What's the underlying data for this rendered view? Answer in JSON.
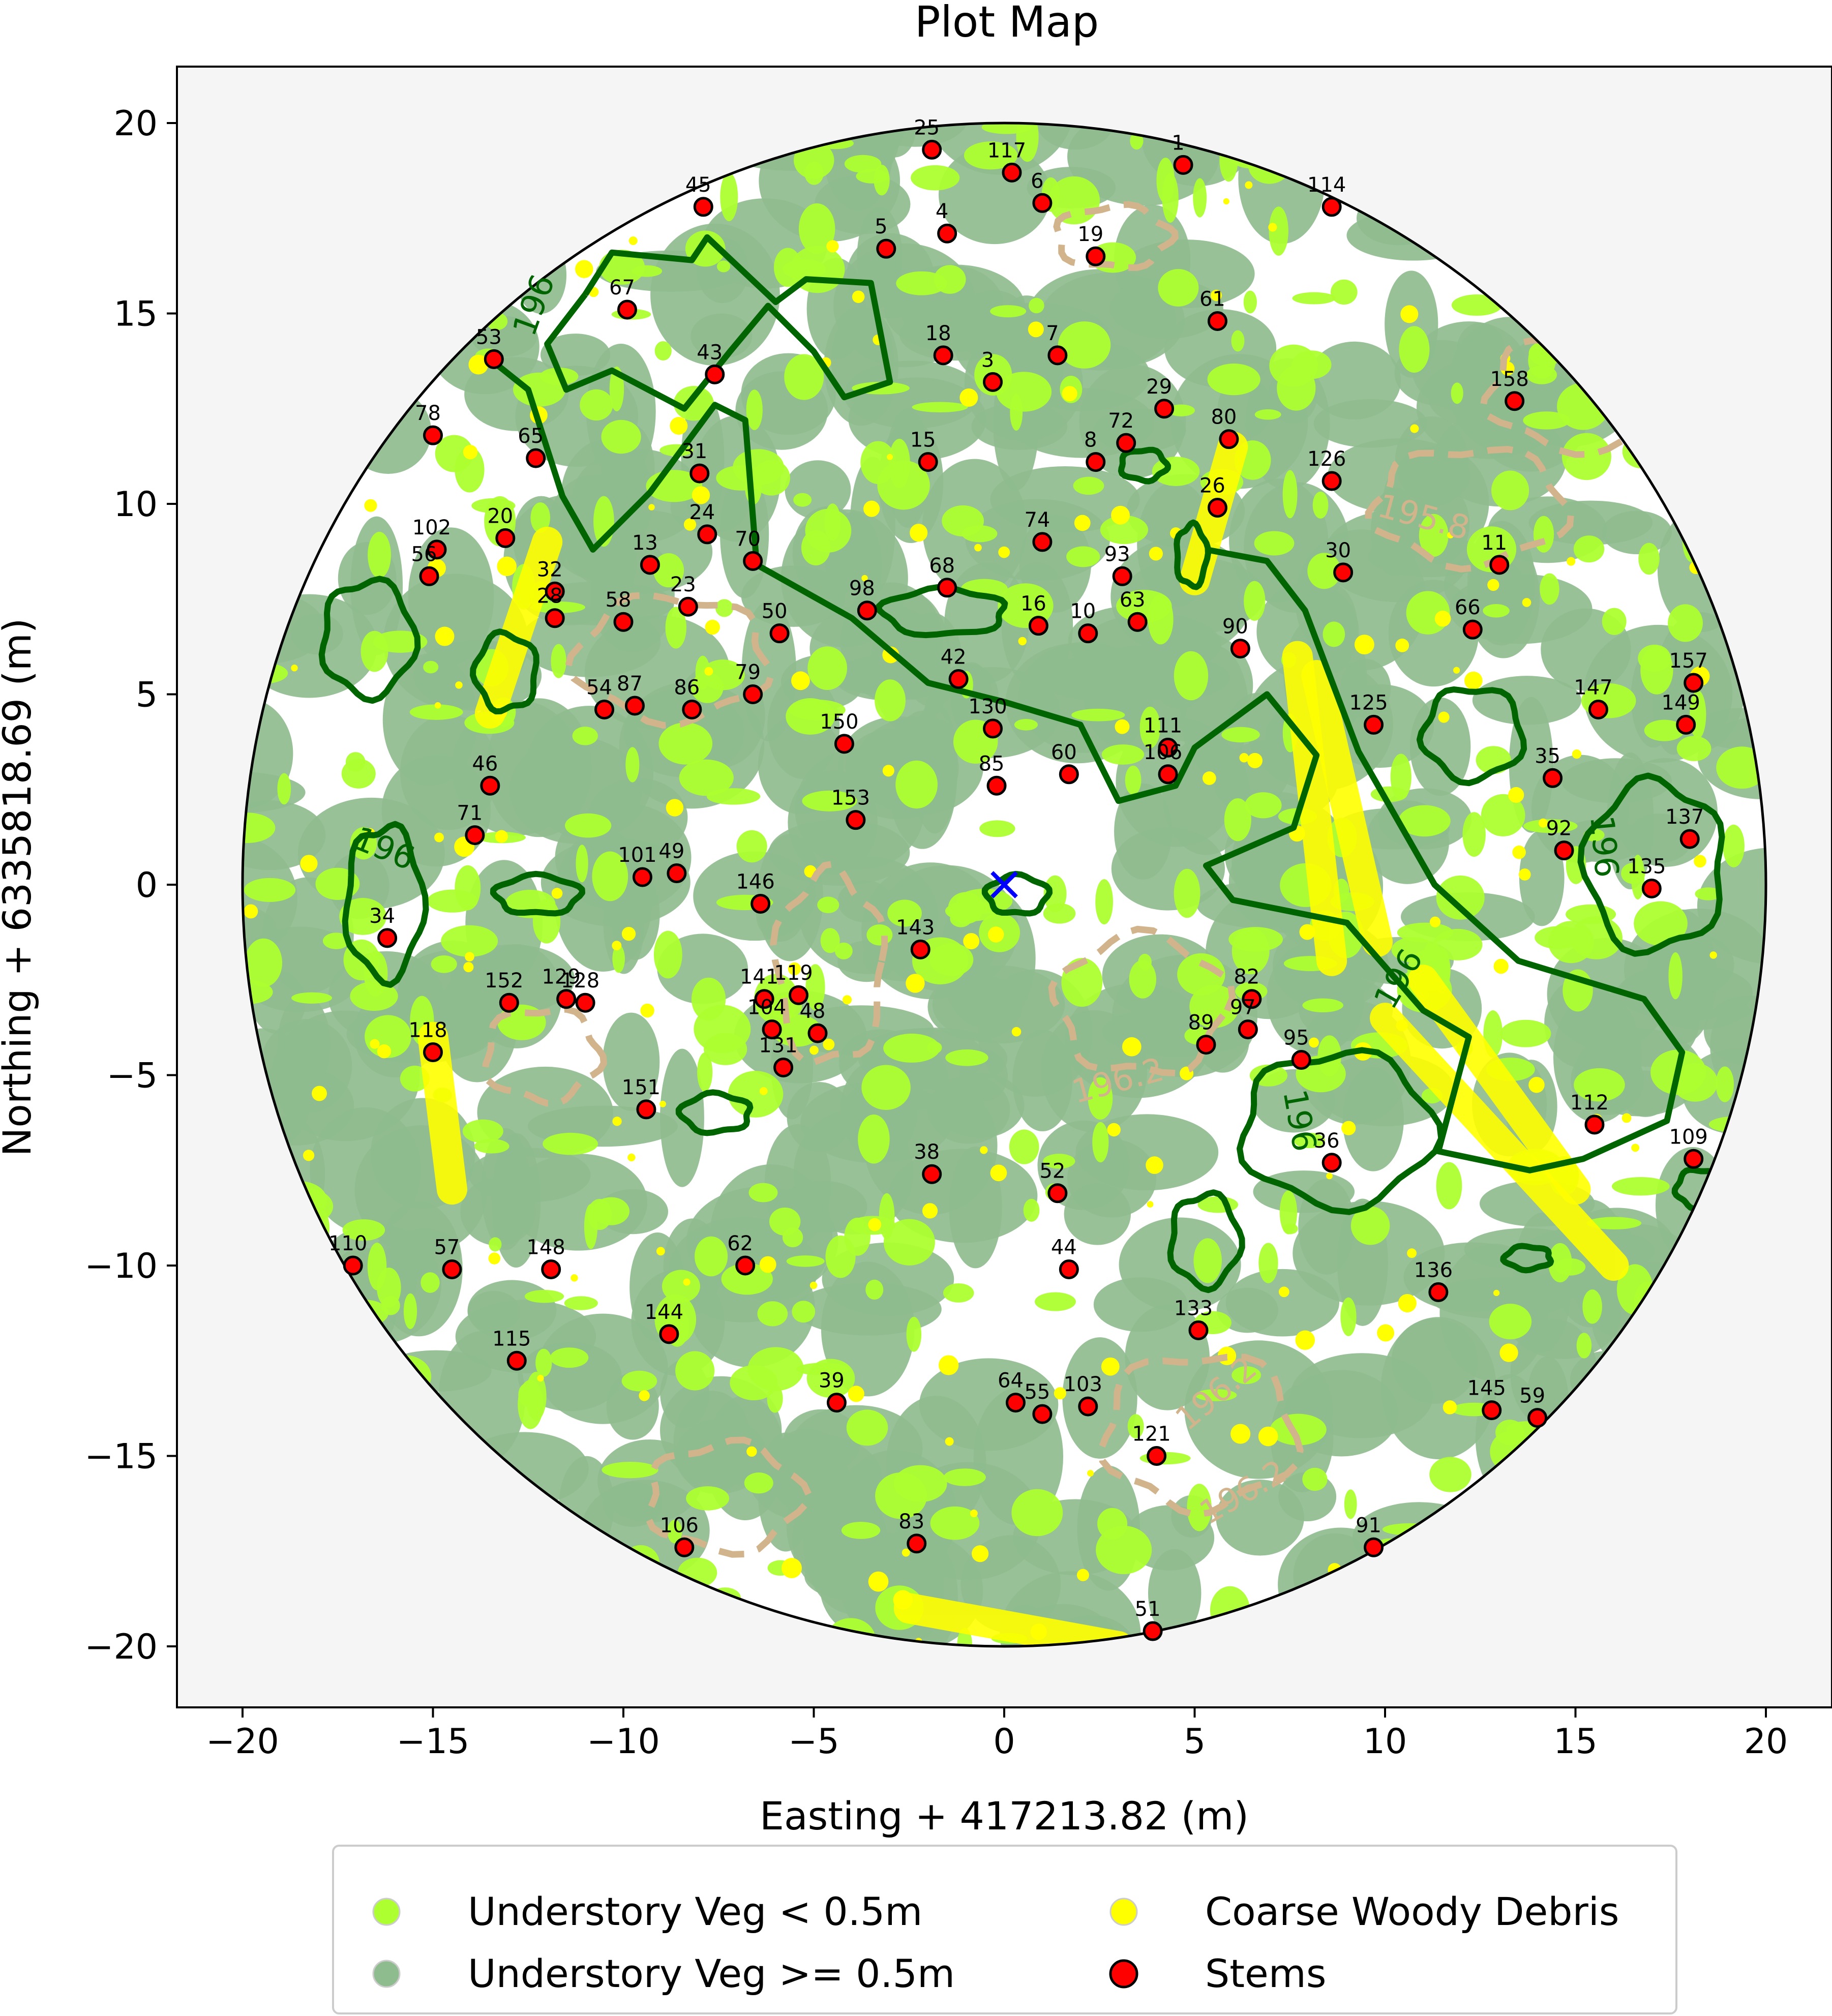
{
  "chart_data": {
    "type": "scatter",
    "title": "Plot Map",
    "xlabel": "Easting + 417213.82 (m)",
    "ylabel": "Northing + 6335818.69 (m)",
    "xlim": [
      -21.7,
      21.7
    ],
    "ylim": [
      -21.7,
      21.7
    ],
    "x_ticks": [
      -20,
      -15,
      -10,
      -5,
      0,
      5,
      10,
      15,
      20
    ],
    "y_ticks": [
      -20,
      -15,
      -10,
      -5,
      0,
      5,
      10,
      15,
      20
    ],
    "tick_labels": [
      "−20",
      "−15",
      "−10",
      "−5",
      "0",
      "5",
      "10",
      "15",
      "20"
    ],
    "plot_radius": 20,
    "plot_center": [
      0,
      0
    ],
    "grid": false,
    "legend_position": "below",
    "legend": [
      {
        "label": "Understory Veg < 0.5m",
        "color": "#adff2f"
      },
      {
        "label": "Coarse Woody Debris",
        "color": "#ffff00"
      },
      {
        "label": "Understory Veg >= 0.5m",
        "color": "#8fbc8f"
      },
      {
        "label": "Stems",
        "color": "#ff0000"
      }
    ],
    "colors": {
      "background": "#f5f5f5",
      "veg_low": "#adff2f",
      "veg_high": "#8fbc8f",
      "cwd": "#ffff00",
      "stem": "#ff0000",
      "contour_dark": "#006400",
      "contour_light": "#d2b48c",
      "center_marker": "#0000ff"
    },
    "contour_labels": [
      {
        "text": "196",
        "x": -16.3,
        "y": 0.9,
        "rot": 22,
        "color": "#006400"
      },
      {
        "text": "196",
        "x": 15.7,
        "y": 1.0,
        "rot": 85,
        "color": "#006400"
      },
      {
        "text": "196",
        "x": 10.4,
        "y": -2.5,
        "rot": -60,
        "color": "#006400"
      },
      {
        "text": "196",
        "x": 7.7,
        "y": -6.2,
        "rot": 80,
        "color": "#006400"
      },
      {
        "text": "196",
        "x": -12.3,
        "y": 15.2,
        "rot": -70,
        "color": "#006400"
      },
      {
        "text": "196.2",
        "x": 3.0,
        "y": -5.2,
        "rot": -15,
        "color": "#d2b48c"
      },
      {
        "text": "196.2",
        "x": 5.6,
        "y": -13.4,
        "rot": -40,
        "color": "#d2b48c"
      },
      {
        "text": "196.2",
        "x": 6.3,
        "y": -16.0,
        "rot": -30,
        "color": "#d2b48c"
      },
      {
        "text": "195.8",
        "x": 11.0,
        "y": 9.6,
        "rot": 15,
        "color": "#d2b48c"
      }
    ],
    "stems": [
      {
        "id": "1",
        "x": 4.7,
        "y": 18.9
      },
      {
        "id": "25",
        "x": -1.9,
        "y": 19.3
      },
      {
        "id": "117",
        "x": 0.2,
        "y": 18.7
      },
      {
        "id": "6",
        "x": 1.0,
        "y": 17.9
      },
      {
        "id": "114",
        "x": 8.6,
        "y": 17.8
      },
      {
        "id": "45",
        "x": -7.9,
        "y": 17.8
      },
      {
        "id": "4",
        "x": -1.5,
        "y": 17.1
      },
      {
        "id": "5",
        "x": -3.1,
        "y": 16.7
      },
      {
        "id": "19",
        "x": 2.4,
        "y": 16.5
      },
      {
        "id": "67",
        "x": -9.9,
        "y": 15.1
      },
      {
        "id": "61",
        "x": 5.6,
        "y": 14.8
      },
      {
        "id": "53",
        "x": -13.4,
        "y": 13.8
      },
      {
        "id": "18",
        "x": -1.6,
        "y": 13.9
      },
      {
        "id": "7",
        "x": 1.4,
        "y": 13.9
      },
      {
        "id": "43",
        "x": -7.6,
        "y": 13.4
      },
      {
        "id": "3",
        "x": -0.3,
        "y": 13.2
      },
      {
        "id": "158",
        "x": 13.4,
        "y": 12.7
      },
      {
        "id": "29",
        "x": 4.2,
        "y": 12.5
      },
      {
        "id": "78",
        "x": -15.0,
        "y": 11.8
      },
      {
        "id": "72",
        "x": 3.2,
        "y": 11.6
      },
      {
        "id": "80",
        "x": 5.9,
        "y": 11.7
      },
      {
        "id": "65",
        "x": -12.3,
        "y": 11.2
      },
      {
        "id": "8",
        "x": 2.4,
        "y": 11.1
      },
      {
        "id": "15",
        "x": -2.0,
        "y": 11.1
      },
      {
        "id": "31",
        "x": -8.0,
        "y": 10.8
      },
      {
        "id": "126",
        "x": 8.6,
        "y": 10.6
      },
      {
        "id": "26",
        "x": 5.6,
        "y": 9.9
      },
      {
        "id": "20",
        "x": -13.1,
        "y": 9.1
      },
      {
        "id": "24",
        "x": -7.8,
        "y": 9.2
      },
      {
        "id": "102",
        "x": -14.9,
        "y": 8.8
      },
      {
        "id": "74",
        "x": 1.0,
        "y": 9.0
      },
      {
        "id": "56",
        "x": -15.1,
        "y": 8.1
      },
      {
        "id": "13",
        "x": -9.3,
        "y": 8.4
      },
      {
        "id": "70",
        "x": -6.6,
        "y": 8.5
      },
      {
        "id": "11",
        "x": 13.0,
        "y": 8.4
      },
      {
        "id": "30",
        "x": 8.9,
        "y": 8.2
      },
      {
        "id": "93",
        "x": 3.1,
        "y": 8.1
      },
      {
        "id": "68",
        "x": -1.5,
        "y": 7.8
      },
      {
        "id": "32",
        "x": -11.8,
        "y": 7.7
      },
      {
        "id": "23",
        "x": -8.3,
        "y": 7.3
      },
      {
        "id": "98",
        "x": -3.6,
        "y": 7.2
      },
      {
        "id": "28",
        "x": -11.8,
        "y": 7.0
      },
      {
        "id": "16",
        "x": 0.9,
        "y": 6.8
      },
      {
        "id": "63",
        "x": 3.5,
        "y": 6.9
      },
      {
        "id": "58",
        "x": -10.0,
        "y": 6.9
      },
      {
        "id": "10",
        "x": 2.2,
        "y": 6.6
      },
      {
        "id": "50",
        "x": -5.9,
        "y": 6.6
      },
      {
        "id": "66",
        "x": 12.3,
        "y": 6.7
      },
      {
        "id": "90",
        "x": 6.2,
        "y": 6.2
      },
      {
        "id": "157",
        "x": 18.1,
        "y": 5.3
      },
      {
        "id": "42",
        "x": -1.2,
        "y": 5.4
      },
      {
        "id": "79",
        "x": -6.6,
        "y": 5.0
      },
      {
        "id": "87",
        "x": -9.7,
        "y": 4.7
      },
      {
        "id": "54",
        "x": -10.5,
        "y": 4.6
      },
      {
        "id": "86",
        "x": -8.2,
        "y": 4.6
      },
      {
        "id": "147",
        "x": 15.6,
        "y": 4.6
      },
      {
        "id": "149",
        "x": 17.9,
        "y": 4.2
      },
      {
        "id": "125",
        "x": 9.7,
        "y": 4.2
      },
      {
        "id": "130",
        "x": -0.3,
        "y": 4.1
      },
      {
        "id": "150",
        "x": -4.2,
        "y": 3.7
      },
      {
        "id": "111",
        "x": 4.3,
        "y": 3.6
      },
      {
        "id": "60",
        "x": 1.7,
        "y": 2.9
      },
      {
        "id": "106b",
        "label": "106",
        "x": 4.3,
        "y": 2.9
      },
      {
        "id": "35",
        "x": 14.4,
        "y": 2.8
      },
      {
        "id": "46",
        "x": -13.5,
        "y": 2.6
      },
      {
        "id": "85",
        "x": -0.2,
        "y": 2.6
      },
      {
        "id": "153",
        "x": -3.9,
        "y": 1.7
      },
      {
        "id": "71",
        "x": -13.9,
        "y": 1.3
      },
      {
        "id": "137",
        "x": 18.0,
        "y": 1.2
      },
      {
        "id": "92",
        "x": 14.7,
        "y": 0.9
      },
      {
        "id": "101",
        "x": -9.5,
        "y": 0.2
      },
      {
        "id": "49",
        "x": -8.6,
        "y": 0.3
      },
      {
        "id": "135",
        "x": 17.0,
        "y": -0.1
      },
      {
        "id": "146",
        "x": -6.4,
        "y": -0.5
      },
      {
        "id": "34",
        "x": -16.2,
        "y": -1.4
      },
      {
        "id": "143",
        "x": -2.2,
        "y": -1.7
      },
      {
        "id": "82",
        "x": 6.5,
        "y": -3.0
      },
      {
        "id": "152",
        "x": -13.0,
        "y": -3.1
      },
      {
        "id": "129",
        "x": -11.5,
        "y": -3.0
      },
      {
        "id": "128",
        "x": -11.0,
        "y": -3.1
      },
      {
        "id": "141",
        "x": -6.3,
        "y": -3.0
      },
      {
        "id": "119",
        "x": -5.4,
        "y": -2.9
      },
      {
        "id": "97",
        "x": 6.4,
        "y": -3.8
      },
      {
        "id": "104",
        "x": -6.1,
        "y": -3.8
      },
      {
        "id": "48",
        "x": -4.9,
        "y": -3.9
      },
      {
        "id": "89",
        "x": 5.3,
        "y": -4.2
      },
      {
        "id": "118",
        "x": -15.0,
        "y": -4.4
      },
      {
        "id": "95",
        "x": 7.8,
        "y": -4.6
      },
      {
        "id": "131",
        "x": -5.8,
        "y": -4.8
      },
      {
        "id": "151",
        "x": -9.4,
        "y": -5.9
      },
      {
        "id": "112",
        "x": 15.5,
        "y": -6.3
      },
      {
        "id": "109",
        "x": 18.1,
        "y": -7.2
      },
      {
        "id": "36",
        "x": 8.6,
        "y": -7.3
      },
      {
        "id": "38",
        "x": -1.9,
        "y": -7.6
      },
      {
        "id": "52",
        "x": 1.4,
        "y": -8.1
      },
      {
        "id": "110",
        "x": -17.1,
        "y": -10.0
      },
      {
        "id": "57",
        "x": -14.5,
        "y": -10.1
      },
      {
        "id": "148",
        "x": -11.9,
        "y": -10.1
      },
      {
        "id": "62",
        "x": -6.8,
        "y": -10.0
      },
      {
        "id": "44",
        "x": 1.7,
        "y": -10.1
      },
      {
        "id": "136",
        "x": 11.4,
        "y": -10.7
      },
      {
        "id": "144",
        "x": -8.8,
        "y": -11.8
      },
      {
        "id": "133",
        "x": 5.1,
        "y": -11.7
      },
      {
        "id": "115",
        "x": -12.8,
        "y": -12.5
      },
      {
        "id": "39",
        "x": -4.4,
        "y": -13.6
      },
      {
        "id": "64",
        "x": 0.3,
        "y": -13.6
      },
      {
        "id": "55",
        "x": 1.0,
        "y": -13.9
      },
      {
        "id": "103",
        "x": 2.2,
        "y": -13.7
      },
      {
        "id": "145",
        "x": 12.8,
        "y": -13.8
      },
      {
        "id": "59",
        "x": 14.0,
        "y": -14.0
      },
      {
        "id": "121",
        "x": 4.0,
        "y": -15.0
      },
      {
        "id": "106",
        "x": -8.4,
        "y": -17.4
      },
      {
        "id": "83",
        "x": -2.3,
        "y": -17.3
      },
      {
        "id": "91",
        "x": 9.7,
        "y": -17.4
      },
      {
        "id": "51",
        "x": 3.9,
        "y": -19.6
      }
    ]
  }
}
